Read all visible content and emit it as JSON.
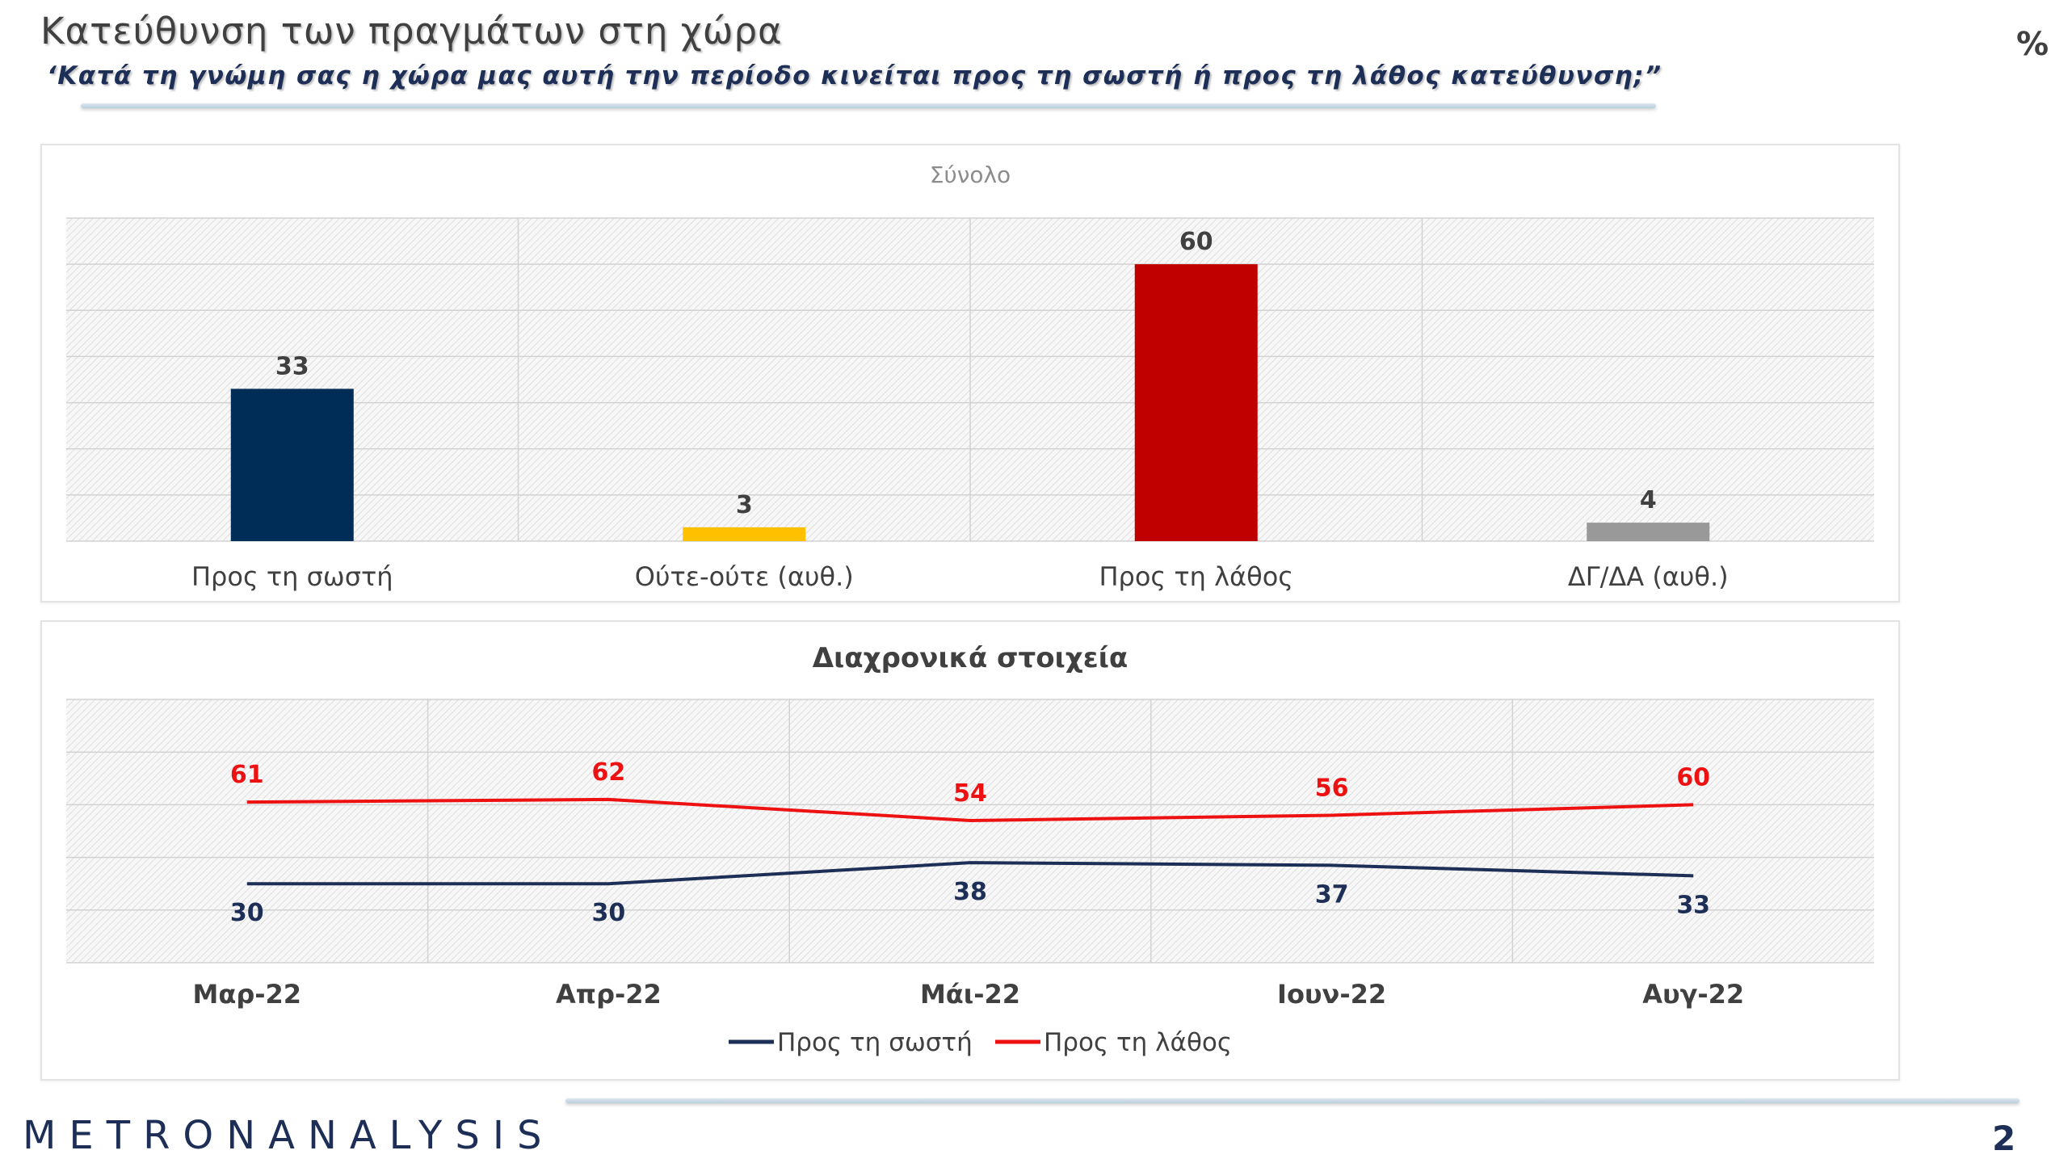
{
  "title": "Κατεύθυνση των πραγμάτων στη χώρα",
  "subtitle": "‘Κατά τη γνώμη σας η χώρα μας αυτή την περίοδο κινείται προς τη σωστή ή προς τη λάθος κατεύθυνση;”",
  "unit_label": "%",
  "logo_text": "METRONANALYSIS",
  "page_number": "2",
  "chart_data": [
    {
      "type": "bar",
      "title": "Σύνολο",
      "categories": [
        "Προς τη σωστή",
        "Ούτε-ούτε (αυθ.)",
        "Προς τη λάθος",
        "ΔΓ/ΔΑ (αυθ.)"
      ],
      "values": [
        33,
        3,
        60,
        4
      ],
      "colors": [
        "#002d58",
        "#ffc000",
        "#c00000",
        "#999999"
      ],
      "ylim": [
        0,
        70
      ],
      "grid": true,
      "pattern_background": true
    },
    {
      "type": "line",
      "title": "Διαχρονικά στοιχεία",
      "categories": [
        "Μαρ-22",
        "Απρ-22",
        "Μάι-22",
        "Ιουν-22",
        "Αυγ-22"
      ],
      "series": [
        {
          "name": "Προς τη σωστή",
          "values": [
            30,
            30,
            38,
            37,
            33
          ],
          "color": "#1e2f57"
        },
        {
          "name": "Προς τη λάθος",
          "values": [
            61,
            62,
            54,
            56,
            60
          ],
          "color": "#ee1111"
        }
      ],
      "ylim": [
        0,
        100
      ],
      "grid": true,
      "legend": "bottom-center"
    }
  ]
}
